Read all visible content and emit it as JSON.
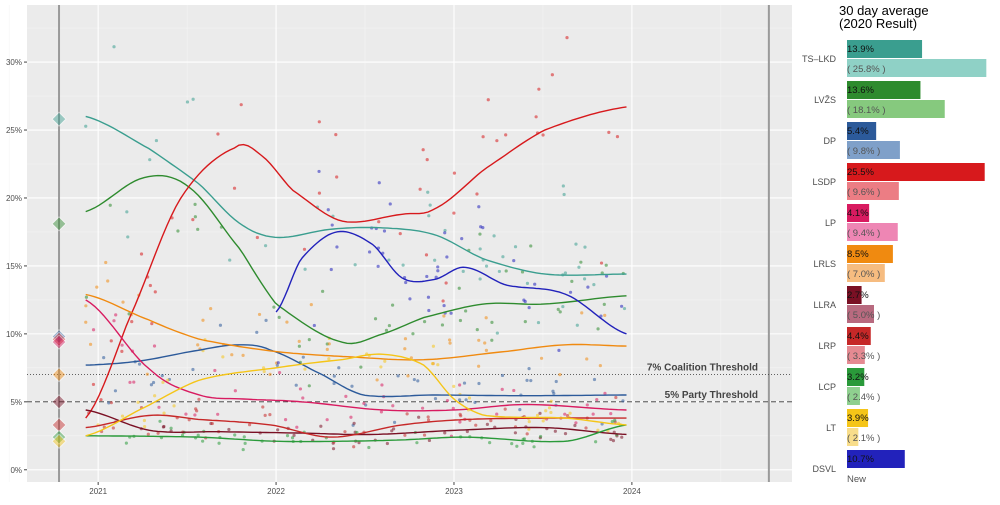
{
  "chart_data": [
    {
      "type": "line",
      "xlabel": "",
      "ylabel": "",
      "xlim": [
        2020.6,
        2024.9
      ],
      "ylim": [
        -0.9,
        34.2
      ],
      "x_ticks": [
        2021,
        2022,
        2023,
        2024
      ],
      "x_tick_labels": [
        "2021",
        "2022",
        "2023",
        "2024"
      ],
      "y_ticks": [
        0,
        5,
        10,
        15,
        20,
        25,
        30
      ],
      "y_tick_labels": [
        "0%",
        "5%",
        "10%",
        "15%",
        "20%",
        "25%",
        "30%"
      ],
      "grid": true,
      "election_markers_x": [
        2020.78,
        2024.77
      ],
      "thresholds": [
        {
          "value": 7,
          "label": "7% Coalition Threshold",
          "style": "dotted"
        },
        {
          "value": 5,
          "label": "5% Party Threshold",
          "style": "dashed"
        }
      ],
      "series": [
        {
          "party": "TS–LKD",
          "color": "#3a9e8f",
          "result_2020": 25.8,
          "x": [
            2020.93,
            2021.29,
            2021.57,
            2021.8,
            2022.0,
            2022.31,
            2022.6,
            2022.89,
            2023.17,
            2023.51,
            2023.97
          ],
          "y": [
            26.0,
            23.6,
            21.0,
            18.1,
            17.1,
            17.7,
            17.8,
            17.3,
            15.5,
            14.4,
            14.4
          ]
        },
        {
          "party": "LVŽS",
          "color": "#2e8b2e",
          "result_2020": 18.1,
          "x": [
            2020.93,
            2021.26,
            2021.51,
            2021.8,
            2022.0,
            2022.37,
            2022.6,
            2022.83,
            2023.17,
            2023.51,
            2023.97
          ],
          "y": [
            19.0,
            21.5,
            20.8,
            16.2,
            12.2,
            9.4,
            10.0,
            11.2,
            12.2,
            12.2,
            12.8
          ]
        },
        {
          "party": "DP",
          "color": "#2c5a9a",
          "result_2020": 9.8,
          "x": [
            2020.93,
            2021.23,
            2021.57,
            2021.8,
            2021.97,
            2022.26,
            2022.49,
            2022.89,
            2023.4,
            2023.97
          ],
          "y": [
            7.7,
            8.0,
            8.8,
            9.2,
            8.8,
            7.0,
            5.5,
            5.5,
            5.45,
            5.5
          ]
        },
        {
          "party": "LSDP",
          "color": "#d7191c",
          "result_2020": 9.6,
          "x": [
            2020.93,
            2021.17,
            2021.46,
            2021.77,
            2021.91,
            2022.09,
            2022.37,
            2022.71,
            2022.89,
            2023.17,
            2023.51,
            2023.97
          ],
          "y": [
            3.8,
            11.0,
            19.9,
            23.7,
            23.2,
            20.6,
            18.3,
            18.8,
            19.2,
            22.1,
            25.0,
            26.7
          ]
        },
        {
          "party": "LP",
          "color": "#d81b60",
          "result_2020": 9.4,
          "x": [
            2020.93,
            2021.29,
            2021.57,
            2021.83,
            2022.14,
            2022.6,
            2023.0,
            2023.4,
            2023.97
          ],
          "y": [
            12.5,
            7.4,
            5.5,
            5.2,
            5.0,
            4.4,
            4.4,
            4.8,
            4.4
          ]
        },
        {
          "party": "LRLS",
          "color": "#f08a10",
          "result_2020": 7.0,
          "x": [
            2020.93,
            2021.29,
            2021.57,
            2022.0,
            2022.43,
            2022.83,
            2023.29,
            2023.63,
            2023.97
          ],
          "y": [
            12.9,
            11.0,
            9.6,
            8.7,
            8.3,
            8.1,
            8.7,
            9.2,
            9.1
          ]
        },
        {
          "party": "LLRA",
          "color": "#7a1024",
          "result_2020": 5.0,
          "x": [
            2020.93,
            2021.29,
            2021.69,
            2022.14,
            2022.54,
            2023.0,
            2023.51,
            2023.97
          ],
          "y": [
            4.4,
            2.9,
            2.8,
            2.7,
            2.6,
            2.9,
            3.1,
            2.6
          ]
        },
        {
          "party": "LRP",
          "color": "#c62828",
          "result_2020": 3.3,
          "x": [
            2020.93,
            2021.29,
            2021.57,
            2021.97,
            2022.31,
            2022.71,
            2023.06,
            2023.51,
            2023.97
          ],
          "y": [
            3.1,
            4.0,
            3.7,
            3.3,
            2.4,
            3.3,
            3.7,
            3.8,
            3.8
          ]
        },
        {
          "party": "LCP",
          "color": "#2a9a3a",
          "result_2020": 2.4,
          "x": [
            2020.93,
            2021.57,
            2022.0,
            2022.37,
            2022.71,
            2023.06,
            2023.63,
            2023.97
          ],
          "y": [
            2.5,
            2.4,
            2.1,
            2.1,
            2.2,
            2.4,
            2.1,
            3.3
          ]
        },
        {
          "party": "LT",
          "color": "#f5c518",
          "result_2020": 2.1,
          "x": [
            2020.93,
            2021.23,
            2021.57,
            2022.0,
            2022.37,
            2022.6,
            2022.83,
            2023.0,
            2023.17,
            2023.63,
            2023.97
          ],
          "y": [
            2.5,
            4.4,
            6.6,
            7.5,
            8.1,
            8.5,
            7.7,
            5.2,
            4.0,
            3.8,
            3.3
          ]
        },
        {
          "party": "DSVL",
          "color": "#2222bb",
          "result_2020": null,
          "x": [
            2022.0,
            2022.14,
            2022.34,
            2022.54,
            2022.71,
            2022.89,
            2023.06,
            2023.29,
            2023.63,
            2023.97
          ],
          "y": [
            11.6,
            15.5,
            17.5,
            16.6,
            14.1,
            14.0,
            14.9,
            13.6,
            12.9,
            10.0
          ]
        }
      ]
    },
    {
      "type": "bar",
      "title": "30 day average",
      "subtitle": "(2020 Result)",
      "categories": [
        "TS–LKD",
        "LVŽS",
        "DP",
        "LSDP",
        "LP",
        "LRLS",
        "LLRA",
        "LRP",
        "LCP",
        "LT",
        "DSVL"
      ],
      "current": [
        13.9,
        13.6,
        5.4,
        25.5,
        4.1,
        8.5,
        2.7,
        4.4,
        3.2,
        3.9,
        10.7
      ],
      "current_labels": [
        "13.9%",
        "13.6%",
        "5.4%",
        "25.5%",
        "4.1%",
        "8.5%",
        "2.7%",
        "4.4%",
        "3.2%",
        "3.9%",
        "10.7%"
      ],
      "result_2020": [
        25.8,
        18.1,
        9.8,
        9.6,
        9.4,
        7.0,
        5.0,
        3.3,
        2.4,
        2.1,
        null
      ],
      "result_labels": [
        "( 25.8% )",
        "( 18.1% )",
        "( 9.8% )",
        "( 9.6% )",
        "( 9.4% )",
        "( 7.0% )",
        "( 5.0% )",
        "( 3.3% )",
        "( 2.4% )",
        "( 2.1% )",
        "New"
      ],
      "colors": [
        "#3a9e8f",
        "#2e8b2e",
        "#2c5a9a",
        "#d7191c",
        "#d81b60",
        "#f08a10",
        "#7a1024",
        "#c62828",
        "#2a9a3a",
        "#f5c518",
        "#2222bb"
      ],
      "result_colors": [
        "#8fd1c6",
        "#86c97e",
        "#7fa0c9",
        "#ec7d84",
        "#ee86b4",
        "#f6bc80",
        "#b86a7f",
        "#e58a92",
        "#8fd08f",
        "#f8dd8a",
        null
      ]
    }
  ]
}
